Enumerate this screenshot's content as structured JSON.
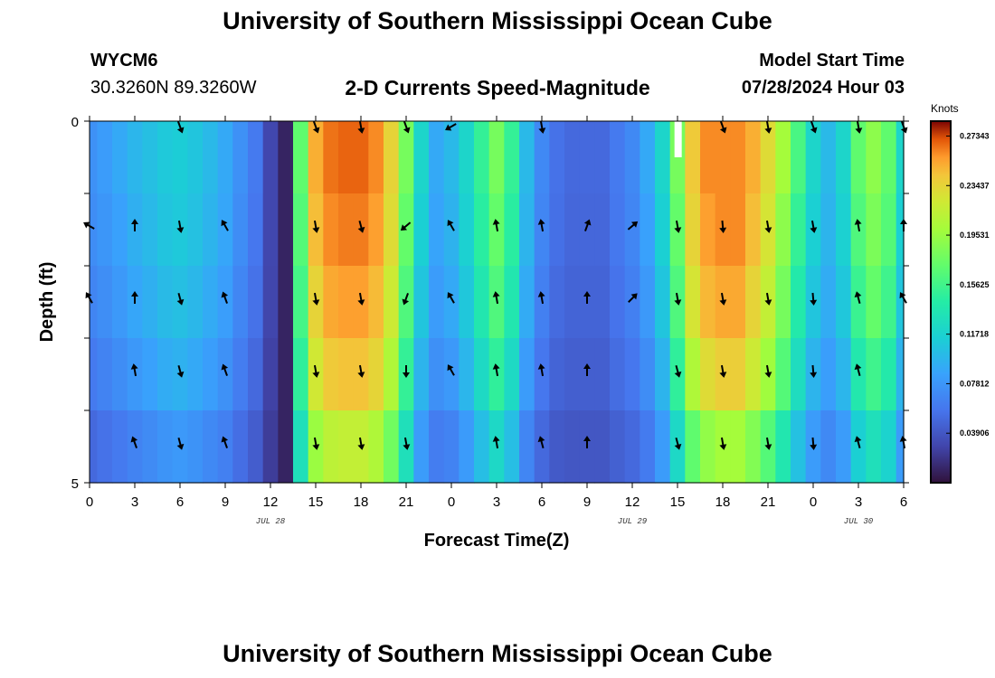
{
  "header": {
    "title": "University of Southern Mississippi Ocean Cube",
    "station_id": "WYCM6",
    "station_coords": "30.3260N  89.3260W",
    "subtitle": "2-D Currents Speed-Magnitude",
    "model_start_label": "Model Start Time",
    "model_start_value": "07/28/2024 Hour 03"
  },
  "footer": {
    "title": "University of Southern Mississippi Ocean Cube"
  },
  "chart_data": {
    "type": "heatmap",
    "title": "2-D Currents Speed-Magnitude",
    "xlabel": "Forecast Time(Z)",
    "ylabel": "Depth (ft)",
    "x_tick_labels": [
      "0",
      "3",
      "6",
      "9",
      "12",
      "15",
      "18",
      "21",
      "0",
      "3",
      "6",
      "9",
      "12",
      "15",
      "18",
      "21",
      "0",
      "3",
      "6"
    ],
    "x_range_hours": [
      0,
      54
    ],
    "y_tick_labels": [
      "0",
      "5"
    ],
    "y_range": [
      0,
      5
    ],
    "date_labels": [
      {
        "label": "JUL 28",
        "hour": 12
      },
      {
        "label": "JUL 29",
        "hour": 36
      },
      {
        "label": "JUL 30",
        "hour": 51
      }
    ],
    "colorbar": {
      "title": "Knots",
      "tick_values": [
        "0.27343",
        "0.23437",
        "0.19531",
        "0.15625",
        "0.11718",
        "0.07812",
        "0.03906"
      ],
      "range": [
        0,
        0.2852
      ]
    },
    "depth_layers": 5,
    "time_profile_hours": [
      0,
      1,
      2,
      3,
      4,
      5,
      6,
      7,
      8,
      9,
      10,
      11,
      12,
      13,
      14,
      15,
      16,
      17,
      18,
      19,
      20,
      21,
      22,
      23,
      24,
      25,
      26,
      27,
      28,
      29,
      30,
      31,
      32,
      33,
      34,
      35,
      36,
      37,
      38,
      39,
      40,
      41,
      42,
      43,
      44,
      45,
      46,
      47,
      48,
      49,
      50,
      51,
      52,
      53,
      54
    ],
    "speed_knots_by_layer": [
      [
        0.075,
        0.082,
        0.09,
        0.098,
        0.104,
        0.11,
        0.113,
        0.108,
        0.1,
        0.09,
        0.075,
        0.06,
        0.03,
        0.01,
        0.17,
        0.25,
        0.265,
        0.268,
        0.268,
        0.26,
        0.235,
        0.18,
        0.12,
        0.09,
        0.1,
        0.12,
        0.15,
        0.18,
        0.15,
        0.1,
        0.07,
        0.055,
        0.05,
        0.05,
        0.05,
        0.06,
        0.07,
        0.09,
        0.12,
        0.18,
        0.24,
        0.26,
        0.26,
        0.26,
        0.25,
        0.23,
        0.2,
        0.16,
        0.12,
        0.1,
        0.12,
        0.17,
        0.19,
        0.17,
        0.12
      ],
      [
        0.072,
        0.078,
        0.085,
        0.094,
        0.1,
        0.107,
        0.11,
        0.105,
        0.097,
        0.088,
        0.072,
        0.058,
        0.03,
        0.01,
        0.165,
        0.245,
        0.26,
        0.263,
        0.263,
        0.255,
        0.23,
        0.172,
        0.115,
        0.087,
        0.096,
        0.116,
        0.145,
        0.172,
        0.145,
        0.097,
        0.068,
        0.054,
        0.049,
        0.049,
        0.049,
        0.059,
        0.068,
        0.085,
        0.115,
        0.172,
        0.235,
        0.255,
        0.26,
        0.26,
        0.245,
        0.225,
        0.19,
        0.15,
        0.115,
        0.097,
        0.116,
        0.163,
        0.182,
        0.165,
        0.115
      ],
      [
        0.067,
        0.073,
        0.08,
        0.088,
        0.094,
        0.101,
        0.104,
        0.099,
        0.091,
        0.083,
        0.068,
        0.055,
        0.029,
        0.01,
        0.158,
        0.235,
        0.252,
        0.255,
        0.255,
        0.246,
        0.22,
        0.163,
        0.108,
        0.082,
        0.09,
        0.109,
        0.137,
        0.163,
        0.137,
        0.091,
        0.064,
        0.051,
        0.047,
        0.047,
        0.047,
        0.056,
        0.064,
        0.08,
        0.108,
        0.163,
        0.225,
        0.247,
        0.252,
        0.252,
        0.235,
        0.215,
        0.18,
        0.14,
        0.108,
        0.092,
        0.109,
        0.153,
        0.172,
        0.155,
        0.108
      ],
      [
        0.06,
        0.066,
        0.072,
        0.079,
        0.085,
        0.092,
        0.095,
        0.09,
        0.083,
        0.075,
        0.062,
        0.05,
        0.027,
        0.01,
        0.148,
        0.222,
        0.24,
        0.243,
        0.243,
        0.234,
        0.205,
        0.15,
        0.097,
        0.074,
        0.08,
        0.098,
        0.124,
        0.148,
        0.124,
        0.082,
        0.058,
        0.047,
        0.044,
        0.044,
        0.044,
        0.052,
        0.058,
        0.072,
        0.097,
        0.148,
        0.205,
        0.23,
        0.238,
        0.238,
        0.22,
        0.198,
        0.165,
        0.127,
        0.097,
        0.083,
        0.098,
        0.138,
        0.155,
        0.14,
        0.097
      ],
      [
        0.05,
        0.055,
        0.06,
        0.066,
        0.071,
        0.077,
        0.08,
        0.076,
        0.07,
        0.064,
        0.053,
        0.043,
        0.024,
        0.01,
        0.13,
        0.196,
        0.212,
        0.215,
        0.215,
        0.205,
        0.178,
        0.13,
        0.082,
        0.062,
        0.066,
        0.081,
        0.103,
        0.123,
        0.103,
        0.068,
        0.05,
        0.041,
        0.039,
        0.039,
        0.039,
        0.045,
        0.05,
        0.061,
        0.082,
        0.123,
        0.17,
        0.192,
        0.2,
        0.2,
        0.185,
        0.165,
        0.137,
        0.105,
        0.082,
        0.07,
        0.082,
        0.115,
        0.13,
        0.118,
        0.082
      ]
    ],
    "vector_columns_hours": [
      0,
      3,
      6,
      9,
      12,
      15,
      18,
      21,
      24,
      27,
      30,
      33,
      36,
      39,
      42,
      45,
      48,
      51,
      54
    ],
    "vector_direction_deg_by_layer": [
      [
        null,
        null,
        160,
        null,
        null,
        160,
        170,
        160,
        240,
        null,
        170,
        null,
        null,
        null,
        160,
        170,
        160,
        170,
        160
      ],
      [
        300,
        0,
        170,
        330,
        null,
        170,
        165,
        230,
        330,
        350,
        350,
        20,
        50,
        170,
        175,
        170,
        170,
        350,
        0
      ],
      [
        330,
        0,
        165,
        340,
        null,
        170,
        170,
        200,
        330,
        350,
        350,
        0,
        45,
        170,
        170,
        170,
        175,
        345,
        330
      ],
      [
        null,
        350,
        165,
        340,
        null,
        170,
        170,
        180,
        330,
        350,
        350,
        0,
        null,
        165,
        170,
        170,
        175,
        345,
        null
      ],
      [
        null,
        340,
        165,
        340,
        null,
        170,
        170,
        170,
        null,
        350,
        345,
        0,
        null,
        165,
        170,
        170,
        175,
        345,
        350
      ]
    ]
  }
}
